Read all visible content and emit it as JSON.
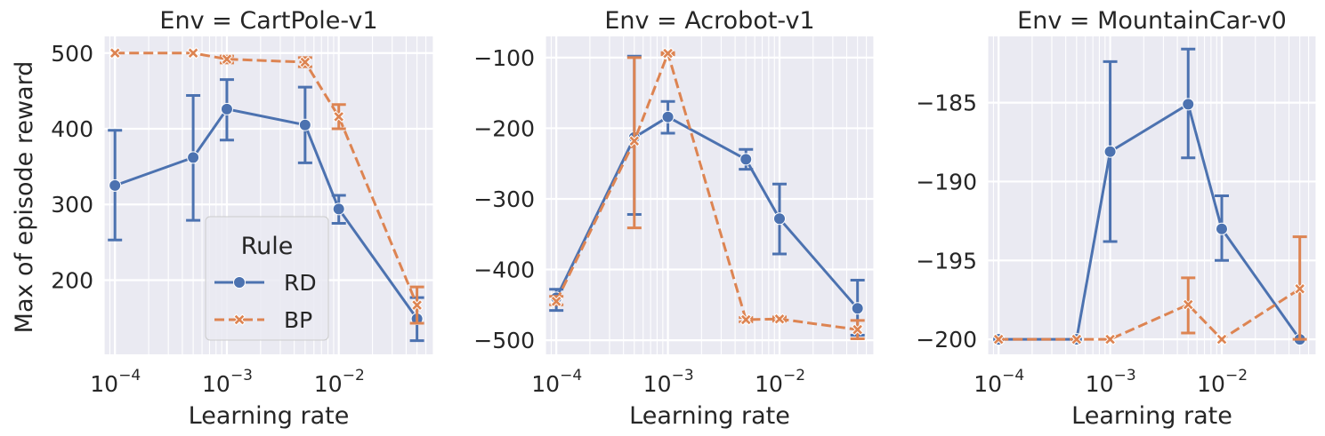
{
  "figure": {
    "ylabel": "Max of episode reward",
    "xlabel": "Learning rate",
    "legend": {
      "title": "Rule",
      "entries": [
        "RD",
        "BP"
      ],
      "placement": "lower-right of first panel"
    },
    "colors": {
      "RD": "#4c72b0",
      "BP": "#dd8452",
      "background": "#eaeaf2",
      "grid": "#ffffff"
    }
  },
  "chart_data": [
    {
      "type": "line",
      "title": "Env = CartPole-v1",
      "xlabel": "Learning rate",
      "ylabel": "Max of episode reward",
      "xscale": "log",
      "xlim": [
        8e-05,
        0.07
      ],
      "ylim": [
        102,
        522
      ],
      "yticks": [
        200,
        300,
        400,
        500
      ],
      "xticks": [
        0.0001,
        0.001,
        0.01
      ],
      "xtick_labels": [
        [
          "10",
          "−4"
        ],
        [
          "10",
          "−3"
        ],
        [
          "10",
          "−2"
        ]
      ],
      "grid": true,
      "legend": true,
      "x": [
        0.0001,
        0.0005,
        0.001,
        0.005,
        0.01,
        0.05
      ],
      "series": [
        {
          "name": "RD",
          "y": [
            325,
            362,
            426,
            405,
            294,
            149
          ],
          "err_low": [
            253,
            279,
            385,
            355,
            275,
            120
          ],
          "err_high": [
            398,
            444,
            465,
            455,
            312,
            177
          ]
        },
        {
          "name": "BP",
          "y": [
            500,
            500,
            492,
            488,
            416,
            167
          ],
          "err_low": [
            500,
            500,
            487,
            482,
            400,
            143
          ],
          "err_high": [
            500,
            500,
            496,
            494,
            432,
            191
          ]
        }
      ]
    },
    {
      "type": "line",
      "title": "Env = Acrobot-v1",
      "xscale": "log",
      "xlim": [
        8e-05,
        0.07
      ],
      "ylim": [
        -520,
        -70
      ],
      "yticks": [
        -500,
        -400,
        -300,
        -200,
        -100
      ],
      "ytick_labels": [
        "−500",
        "−400",
        "−300",
        "−200",
        "−100"
      ],
      "xticks": [
        0.0001,
        0.001,
        0.01
      ],
      "xtick_labels": [
        [
          "10",
          "−4"
        ],
        [
          "10",
          "−3"
        ],
        [
          "10",
          "−2"
        ]
      ],
      "grid": true,
      "legend": false,
      "x": [
        0.0001,
        0.0005,
        0.001,
        0.005,
        0.01,
        0.05
      ],
      "series": [
        {
          "name": "RD",
          "y": [
            -440,
            -213,
            -184,
            -244,
            -328,
            -455
          ],
          "err_low": [
            -458,
            -322,
            -207,
            -258,
            -378,
            -493
          ],
          "err_high": [
            -428,
            -98,
            -162,
            -230,
            -279,
            -415
          ]
        },
        {
          "name": "BP",
          "y": [
            -445,
            -218,
            -94,
            -471,
            -470,
            -485
          ],
          "err_low": [
            -450,
            -341,
            -96,
            -474,
            -473,
            -498
          ],
          "err_high": [
            -438,
            -100,
            -93,
            -468,
            -467,
            -472
          ]
        }
      ]
    },
    {
      "type": "line",
      "title": "Env = MountainCar-v0",
      "xscale": "log",
      "xlim": [
        8e-05,
        0.07
      ],
      "ylim": [
        -200.95,
        -180.8
      ],
      "yticks": [
        -200,
        -195,
        -190,
        -185
      ],
      "ytick_labels": [
        "−200",
        "−195",
        "−190",
        "−185"
      ],
      "xticks": [
        0.0001,
        0.001,
        0.01
      ],
      "xtick_labels": [
        [
          "10",
          "−4"
        ],
        [
          "10",
          "−3"
        ],
        [
          "10",
          "−2"
        ]
      ],
      "grid": true,
      "legend": false,
      "x": [
        0.0001,
        0.0005,
        0.001,
        0.005,
        0.01,
        0.05
      ],
      "series": [
        {
          "name": "RD",
          "y": [
            -200,
            -200,
            -188.1,
            -185.1,
            -193,
            -200
          ],
          "err_low": [
            -200,
            -200,
            -193.8,
            -188.5,
            -195,
            -200
          ],
          "err_high": [
            -200,
            -200,
            -182.4,
            -181.6,
            -190.9,
            -200
          ]
        },
        {
          "name": "BP",
          "y": [
            -200,
            -200,
            -200,
            -197.8,
            -200,
            -196.8
          ],
          "err_low": [
            -200,
            -200,
            -200,
            -199.6,
            -200,
            -200
          ],
          "err_high": [
            -200,
            -200,
            -200,
            -196.1,
            -200,
            -193.5
          ]
        }
      ]
    }
  ]
}
